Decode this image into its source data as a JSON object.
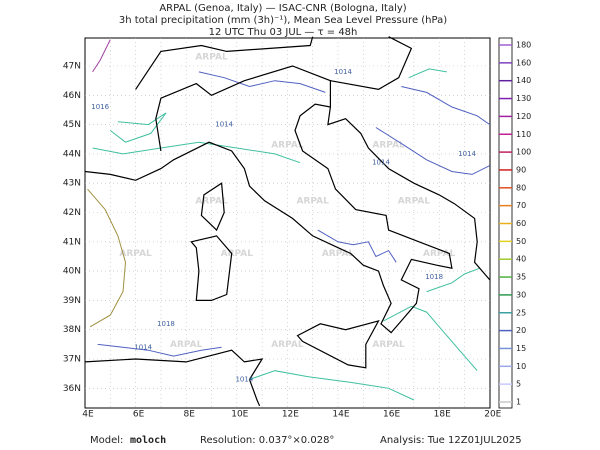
{
  "header": {
    "lines": [
      "ARPAL (Genoa, Italy)  —  ISAC-CNR (Bologna, Italy)",
      "3h total precipitation (mm (3h)⁻¹), Mean Sea Level Pressure (hPa)",
      "12 UTC Thu 03 JUL  —  τ = 48h"
    ]
  },
  "map": {
    "lat_labels": [
      "47N",
      "46N",
      "45N",
      "44N",
      "43N",
      "42N",
      "41N",
      "40N",
      "39N",
      "38N",
      "37N",
      "36N"
    ],
    "lon_labels": [
      "4E",
      "6E",
      "8E",
      "10E",
      "12E",
      "14E",
      "16E",
      "18E",
      "20E"
    ],
    "isobar_labels": [
      "1014",
      "1016",
      "1014",
      "1014",
      "1018",
      "1014",
      "1014",
      "1014",
      "1018"
    ],
    "watermark": "ARPAL"
  },
  "colorbar": {
    "levels": [
      1,
      5,
      10,
      15,
      20,
      25,
      30,
      35,
      40,
      50,
      60,
      70,
      80,
      90,
      100,
      110,
      120,
      130,
      140,
      160,
      180
    ],
    "colors": [
      "#c8c8c8",
      "#c8c8ff",
      "#9aa8e8",
      "#7890d8",
      "#5060c0",
      "#3aa0a0",
      "#2e9a50",
      "#50b040",
      "#a0c830",
      "#e0d020",
      "#e8b020",
      "#e88020",
      "#e05020",
      "#d02020",
      "#c02060",
      "#c02090",
      "#a020a0",
      "#8020b0",
      "#6020a0",
      "#8040c0",
      "#a060d0"
    ]
  },
  "footer": {
    "model_label": "Model:",
    "model": "moloch",
    "resolution": "Resolution: 0.037°×0.028°",
    "analysis": "Analysis: Tue 12Z01JUL2025"
  }
}
